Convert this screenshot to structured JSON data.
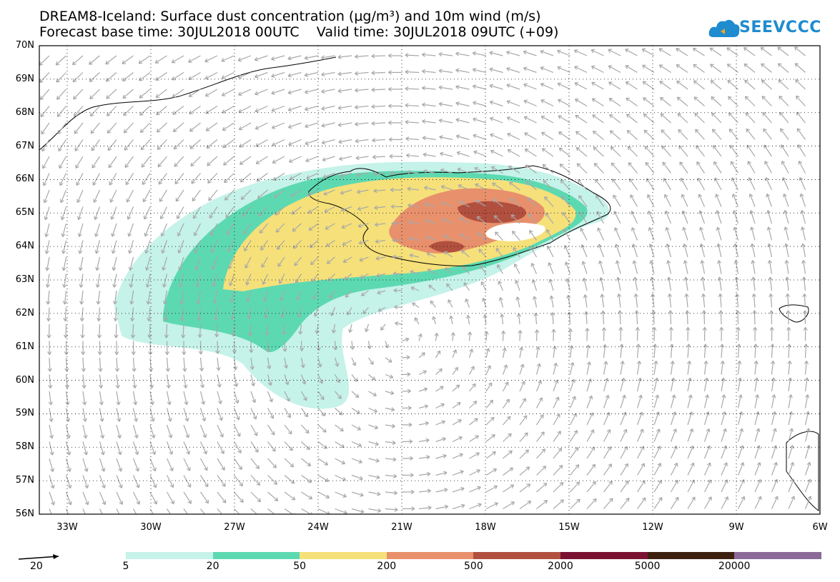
{
  "title": {
    "line1": "DREAM8-Iceland: Surface dust concentration (µg/m³) and 10m wind (m/s)",
    "line2": "Forecast base time: 30JUL2018 00UTC    Valid time: 30JUL2018 09UTC (+09)"
  },
  "logo": {
    "text": "SEEVCCC",
    "icon": "cloud-icon",
    "color": "#1e8ccf"
  },
  "axes": {
    "lat_labels": [
      "70N",
      "69N",
      "68N",
      "67N",
      "66N",
      "65N",
      "64N",
      "63N",
      "62N",
      "61N",
      "60N",
      "59N",
      "58N",
      "57N",
      "56N"
    ],
    "lon_labels": [
      "33W",
      "30W",
      "27W",
      "24W",
      "21W",
      "18W",
      "15W",
      "12W",
      "9W",
      "6W"
    ]
  },
  "legend": {
    "reference_vector_label": "20",
    "labels": [
      "5",
      "20",
      "50",
      "200",
      "500",
      "2000",
      "5000",
      "20000"
    ],
    "colors": [
      "#c5f2e9",
      "#5dd9b1",
      "#f5e07a",
      "#e8906c",
      "#b2503f",
      "#7a1232",
      "#3d2010",
      "#8b6a9a"
    ]
  }
}
